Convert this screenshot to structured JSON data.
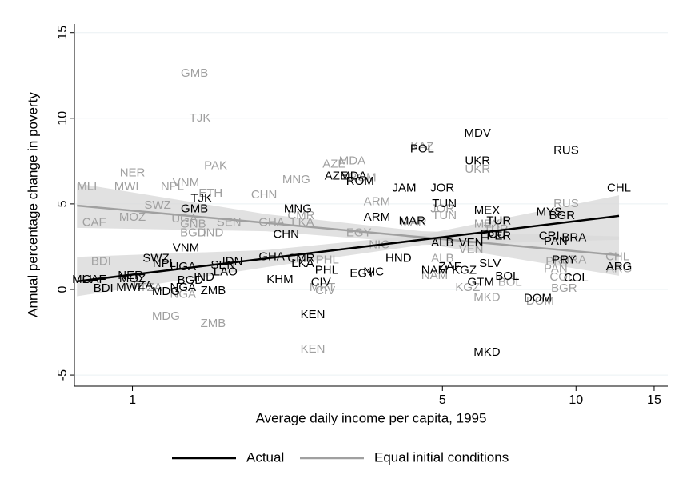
{
  "chart_data": {
    "type": "scatter",
    "x_label": "Average daily income per capita, 1995",
    "y_label": "Annual percentage change in poverty",
    "xlim": [
      0.74,
      16.1
    ],
    "xscale": "log",
    "xticks": [
      1,
      5,
      10,
      15
    ],
    "ylim": [
      -5.65,
      15.5
    ],
    "yticks": [
      -5,
      0,
      5,
      10,
      15
    ],
    "grid": true,
    "legend": "bottom",
    "series": [
      {
        "name": "Equal initial conditions",
        "color": "#a0a0a0",
        "band_color": "#d9d9d9",
        "labels": [
          "GMB",
          "TJK",
          "PAK",
          "NER",
          "MWI",
          "MLI",
          "NPL",
          "VNM",
          "ETH",
          "CHN",
          "SWZ",
          "MOZ",
          "CAF",
          "UGA",
          "GNB",
          "SEN",
          "BGD",
          "IND",
          "GHA",
          "LKA",
          "CMR",
          "MNG",
          "AZE",
          "MDA",
          "ROM",
          "ARM",
          "JAM",
          "MAR",
          "EGY",
          "NIC",
          "HND",
          "PHL",
          "MRT",
          "CIV",
          "KEN",
          "KAZ",
          "UKR",
          "JOR",
          "TUN",
          "MEX",
          "TUR",
          "RUS",
          "CHL",
          "ARG",
          "PRY",
          "PAN",
          "BGR",
          "COL",
          "MKD",
          "DOM",
          "BOL",
          "ALB",
          "NAM",
          "KGZ",
          "VEN",
          "BRA",
          "ZMB",
          "MDG",
          "NGA",
          "TZA",
          "BDI"
        ],
        "x": [
          1.38,
          1.42,
          1.54,
          1.0,
          0.97,
          0.79,
          1.23,
          1.32,
          1.5,
          1.98,
          1.14,
          1.0,
          0.82,
          1.31,
          1.37,
          1.65,
          1.37,
          1.52,
          2.06,
          2.42,
          2.4,
          2.34,
          2.85,
          3.13,
          3.3,
          3.56,
          4.1,
          4.3,
          3.24,
          3.6,
          3.98,
          2.75,
          2.68,
          2.72,
          2.55,
          4.5,
          6.0,
          5.0,
          5.05,
          6.3,
          6.6,
          9.5,
          12.4,
          12.5,
          9.1,
          9.0,
          9.4,
          9.3,
          6.3,
          8.3,
          7.1,
          5.0,
          4.8,
          5.7,
          5.8,
          9.9,
          1.52,
          1.19,
          1.3,
          1.1,
          0.85
        ],
        "values": [
          12.6,
          10.0,
          7.2,
          6.8,
          6.0,
          6.0,
          6.0,
          6.2,
          5.6,
          5.5,
          4.9,
          4.2,
          3.9,
          4.1,
          3.8,
          3.9,
          3.3,
          3.3,
          3.9,
          3.9,
          4.3,
          6.4,
          7.3,
          7.5,
          6.5,
          5.1,
          5.9,
          3.9,
          3.3,
          2.6,
          1.8,
          1.7,
          0.1,
          -0.1,
          -3.5,
          8.3,
          7.0,
          4.7,
          4.3,
          3.8,
          3.5,
          5.0,
          1.9,
          1.2,
          1.6,
          1.2,
          0.05,
          0.7,
          -0.5,
          -0.7,
          0.4,
          1.8,
          0.8,
          0.1,
          2.3,
          1.7,
          -2.0,
          -1.6,
          -0.3,
          0.1,
          1.6
        ],
        "fit": {
          "x": [
            0.75,
            2,
            4.5,
            12.5
          ],
          "values": [
            4.9,
            3.89,
            3.05,
            2.0
          ],
          "lower": [
            3.6,
            3.4,
            2.7,
            0.8
          ],
          "upper": [
            6.2,
            4.4,
            3.4,
            3.1
          ]
        }
      },
      {
        "name": "Actual",
        "color": "#000000",
        "band_color": "#d9d9d9",
        "labels": [
          "MDV",
          "UKR",
          "RUS",
          "POL",
          "CHL",
          "JOR",
          "TUN",
          "MEX",
          "MYS",
          "BGR",
          "TUR",
          "CRI",
          "PAN",
          "BRA",
          "ECU",
          "PER",
          "VEN",
          "ALB",
          "SLV",
          "PRY",
          "ARG",
          "COL",
          "BOL",
          "GTM",
          "NAM",
          "KGZ",
          "ZAF",
          "DOM",
          "MKD",
          "KEN",
          "MNG",
          "ARM",
          "MAR",
          "JAM",
          "AZE",
          "MDA",
          "ROM",
          "CHN",
          "CMR",
          "LKA",
          "EGY",
          "NIC",
          "HND",
          "PHL",
          "CIV",
          "KHM",
          "GHA",
          "IDN",
          "SEN",
          "LAO",
          "VNM",
          "SWZ",
          "NPL",
          "UGA",
          "TJK",
          "GMB",
          "ZMB",
          "MDG",
          "NGA",
          "IND",
          "BGD",
          "TZA",
          "BDI",
          "MWI",
          "MOZ",
          "NER",
          "MLI",
          "CAF"
        ],
        "x": [
          6.0,
          6.0,
          9.5,
          4.5,
          12.5,
          5.0,
          5.05,
          6.3,
          8.7,
          9.3,
          6.7,
          8.7,
          9.0,
          9.9,
          6.5,
          6.7,
          5.8,
          5.0,
          6.4,
          9.4,
          12.5,
          10.0,
          7.0,
          6.1,
          4.8,
          5.6,
          5.2,
          8.2,
          6.3,
          2.55,
          2.36,
          3.56,
          4.27,
          4.1,
          2.88,
          3.15,
          3.26,
          2.22,
          2.4,
          2.42,
          3.3,
          3.5,
          3.98,
          2.74,
          2.66,
          2.15,
          2.06,
          1.68,
          1.6,
          1.62,
          1.32,
          1.13,
          1.18,
          1.3,
          1.43,
          1.38,
          1.52,
          1.19,
          1.3,
          1.45,
          1.35,
          1.05,
          0.86,
          0.98,
          1.0,
          0.99,
          0.77,
          0.82
        ],
        "values": [
          9.1,
          7.5,
          8.1,
          8.2,
          5.9,
          5.9,
          5.0,
          4.6,
          4.5,
          4.3,
          4.0,
          3.1,
          2.8,
          3.0,
          3.2,
          3.1,
          2.7,
          2.7,
          1.5,
          1.7,
          1.3,
          0.65,
          0.75,
          0.4,
          1.1,
          1.1,
          1.3,
          -0.55,
          -3.7,
          -1.5,
          4.7,
          4.2,
          4.0,
          5.9,
          6.6,
          6.6,
          6.3,
          3.2,
          1.8,
          1.5,
          0.9,
          1.0,
          1.8,
          1.1,
          0.4,
          0.55,
          1.9,
          1.6,
          1.4,
          1.0,
          2.4,
          1.8,
          1.5,
          1.3,
          5.3,
          4.7,
          -0.1,
          -0.15,
          0.1,
          0.7,
          0.5,
          0.2,
          0.05,
          0.1,
          0.6,
          0.8,
          0.55,
          0.55
        ],
        "fit": {
          "x": [
            0.75,
            2,
            4.5,
            12.5
          ],
          "values": [
            0.47,
            1.81,
            2.91,
            4.3
          ],
          "lower": [
            -0.4,
            1.3,
            2.6,
            2.9
          ],
          "upper": [
            1.9,
            2.3,
            3.2,
            5.5
          ]
        }
      }
    ]
  }
}
